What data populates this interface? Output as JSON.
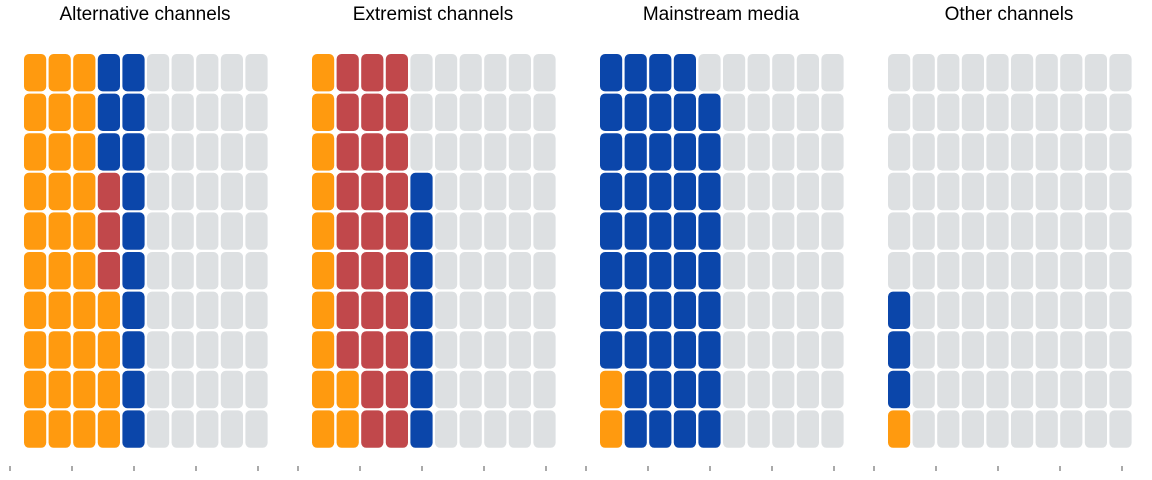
{
  "chart_data": {
    "type": "waffle",
    "grid": {
      "rows": 10,
      "columns": 10,
      "fill_order": "column-major, bottom-to-top, left-to-right"
    },
    "colors": {
      "orange": "#ff9a0f",
      "red": "#c1484b",
      "blue": "#0b46aa",
      "empty": "#dde0e2"
    },
    "series_order": [
      "orange",
      "red",
      "blue"
    ],
    "panels": [
      {
        "title": "Alternative channels",
        "counts": {
          "orange": 34,
          "red": 3,
          "blue": 13
        }
      },
      {
        "title": "Extremist channels",
        "counts": {
          "orange": 12,
          "red": 28,
          "blue": 7
        }
      },
      {
        "title": "Mainstream media",
        "counts": {
          "orange": 2,
          "red": 0,
          "blue": 47
        }
      },
      {
        "title": "Other channels",
        "counts": {
          "orange": 1,
          "red": 0,
          "blue": 3
        }
      }
    ],
    "legend": null,
    "xlabel": "",
    "ylabel": ""
  }
}
